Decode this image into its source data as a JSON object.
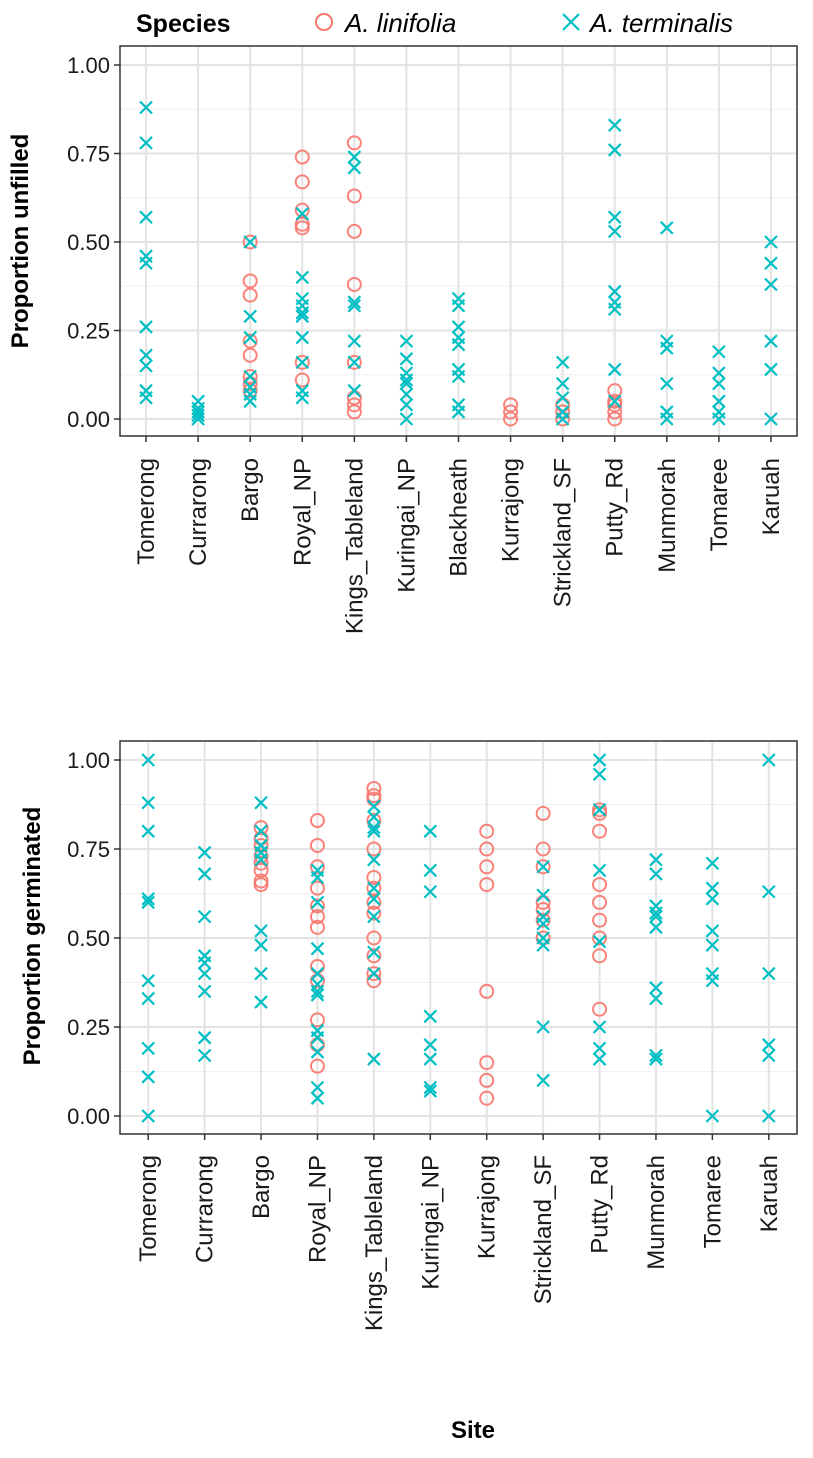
{
  "legend": {
    "title": "Species",
    "entries": [
      {
        "label": "A. linifolia",
        "color": "#F8766D",
        "shape": "circle"
      },
      {
        "label": "A. terminalis",
        "color": "#00BFC4",
        "shape": "cross"
      }
    ]
  },
  "chart_data": [
    {
      "type": "scatter",
      "title": "",
      "xlabel": "",
      "ylabel": "Proportion unfilled",
      "ylim": [
        0,
        1
      ],
      "yticks": [
        "0.00",
        "0.25",
        "0.50",
        "0.75",
        "1.00"
      ],
      "categories": [
        "Tomerong",
        "Currarong",
        "Bargo",
        "Royal_NP",
        "Kings_Tableland",
        "Kuringai_NP",
        "Blackheath",
        "Kurrajong",
        "Strickland_SF",
        "Putty_Rd",
        "Munmorah",
        "Tomaree",
        "Karuah"
      ],
      "series": [
        {
          "name": "A. linifolia",
          "color": "#F8766D",
          "shape": "circle",
          "points": {
            "Bargo": [
              0.5,
              0.39,
              0.35,
              0.22,
              0.18,
              0.12,
              0.1,
              0.08
            ],
            "Royal_NP": [
              0.74,
              0.67,
              0.59,
              0.55,
              0.54,
              0.16,
              0.11
            ],
            "Kings_Tableland": [
              0.78,
              0.63,
              0.53,
              0.38,
              0.16,
              0.06,
              0.04,
              0.02
            ],
            "Kurrajong": [
              0.04,
              0.02,
              0.0
            ],
            "Strickland_SF": [
              0.04,
              0.02,
              0.0
            ],
            "Putty_Rd": [
              0.08,
              0.05,
              0.04,
              0.02,
              0.0
            ]
          }
        },
        {
          "name": "A. terminalis",
          "color": "#00BFC4",
          "shape": "cross",
          "points": {
            "Tomerong": [
              0.88,
              0.78,
              0.57,
              0.46,
              0.44,
              0.26,
              0.18,
              0.15,
              0.08,
              0.06
            ],
            "Currarong": [
              0.05,
              0.03,
              0.02,
              0.01,
              0.0
            ],
            "Bargo": [
              0.5,
              0.29,
              0.23,
              0.12,
              0.09,
              0.07,
              0.05
            ],
            "Royal_NP": [
              0.58,
              0.4,
              0.34,
              0.32,
              0.3,
              0.29,
              0.23,
              0.16,
              0.08,
              0.06
            ],
            "Kings_Tableland": [
              0.74,
              0.71,
              0.33,
              0.32,
              0.22,
              0.16,
              0.08
            ],
            "Kuringai_NP": [
              0.22,
              0.17,
              0.13,
              0.11,
              0.1,
              0.07,
              0.04,
              0.0
            ],
            "Blackheath": [
              0.34,
              0.32,
              0.26,
              0.23,
              0.21,
              0.14,
              0.12,
              0.04,
              0.02
            ],
            "Strickland_SF": [
              0.16,
              0.1,
              0.06,
              0.02,
              0.0
            ],
            "Putty_Rd": [
              0.83,
              0.76,
              0.57,
              0.53,
              0.36,
              0.33,
              0.31,
              0.14,
              0.05
            ],
            "Munmorah": [
              0.54,
              0.22,
              0.2,
              0.1,
              0.02,
              0.0
            ],
            "Tomaree": [
              0.19,
              0.13,
              0.1,
              0.05,
              0.02,
              0.0
            ],
            "Karuah": [
              0.5,
              0.44,
              0.38,
              0.22,
              0.14,
              0.0
            ]
          }
        }
      ]
    },
    {
      "type": "scatter",
      "title": "",
      "xlabel": "Site",
      "ylabel": "Proportion germinated",
      "ylim": [
        0,
        1
      ],
      "yticks": [
        "0.00",
        "0.25",
        "0.50",
        "0.75",
        "1.00"
      ],
      "categories": [
        "Tomerong",
        "Currarong",
        "Bargo",
        "Royal_NP",
        "Kings_Tableland",
        "Kuringai_NP",
        "Kurrajong",
        "Strickland_SF",
        "Putty_Rd",
        "Munmorah",
        "Tomaree",
        "Karuah"
      ],
      "series": [
        {
          "name": "A. linifolia",
          "color": "#F8766D",
          "shape": "circle",
          "points": {
            "Bargo": [
              0.81,
              0.78,
              0.76,
              0.73,
              0.71,
              0.69,
              0.66,
              0.65
            ],
            "Royal_NP": [
              0.83,
              0.76,
              0.7,
              0.64,
              0.59,
              0.56,
              0.53,
              0.42,
              0.38,
              0.27,
              0.2,
              0.14
            ],
            "Kings_Tableland": [
              0.92,
              0.9,
              0.89,
              0.83,
              0.75,
              0.67,
              0.64,
              0.6,
              0.57,
              0.5,
              0.45,
              0.4,
              0.38
            ],
            "Kurrajong": [
              0.8,
              0.75,
              0.7,
              0.65,
              0.35,
              0.15,
              0.1,
              0.05
            ],
            "Strickland_SF": [
              0.85,
              0.75,
              0.7,
              0.6,
              0.58,
              0.55,
              0.5
            ],
            "Putty_Rd": [
              0.86,
              0.85,
              0.8,
              0.65,
              0.6,
              0.55,
              0.5,
              0.45,
              0.3
            ]
          }
        },
        {
          "name": "A. terminalis",
          "color": "#00BFC4",
          "shape": "cross",
          "points": {
            "Tomerong": [
              1.0,
              0.88,
              0.8,
              0.61,
              0.6,
              0.38,
              0.33,
              0.19,
              0.11,
              0.0
            ],
            "Currarong": [
              0.74,
              0.68,
              0.56,
              0.45,
              0.43,
              0.4,
              0.35,
              0.22,
              0.17
            ],
            "Bargo": [
              0.88,
              0.8,
              0.76,
              0.74,
              0.72,
              0.52,
              0.48,
              0.4,
              0.32
            ],
            "Royal_NP": [
              0.69,
              0.67,
              0.6,
              0.47,
              0.4,
              0.37,
              0.35,
              0.34,
              0.24,
              0.22,
              0.18,
              0.08,
              0.05
            ],
            "Kings_Tableland": [
              0.87,
              0.84,
              0.81,
              0.8,
              0.72,
              0.64,
              0.61,
              0.56,
              0.46,
              0.4,
              0.16
            ],
            "Kuringai_NP": [
              0.8,
              0.69,
              0.63,
              0.28,
              0.2,
              0.16,
              0.08,
              0.07
            ],
            "Strickland_SF": [
              0.7,
              0.62,
              0.56,
              0.54,
              0.5,
              0.48,
              0.25,
              0.1
            ],
            "Putty_Rd": [
              1.0,
              0.96,
              0.86,
              0.69,
              0.49,
              0.25,
              0.19,
              0.16
            ],
            "Munmorah": [
              0.72,
              0.68,
              0.59,
              0.57,
              0.56,
              0.53,
              0.36,
              0.33,
              0.17,
              0.16
            ],
            "Tomaree": [
              0.71,
              0.64,
              0.61,
              0.52,
              0.48,
              0.4,
              0.38,
              0.0
            ],
            "Karuah": [
              1.0,
              0.63,
              0.4,
              0.2,
              0.17,
              0.0
            ]
          }
        }
      ]
    }
  ]
}
